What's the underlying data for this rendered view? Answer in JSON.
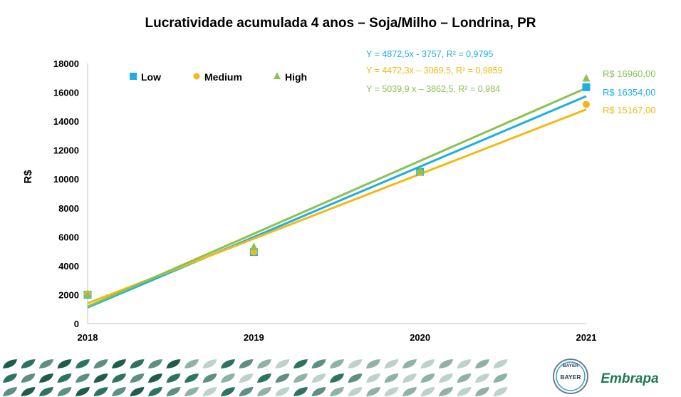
{
  "chart_data": {
    "type": "scatter",
    "title": "Lucratividade acumulada 4 anos – Soja/Milho – Londrina, PR",
    "xlabel": "",
    "ylabel": "R$",
    "x": [
      2018,
      2019,
      2020,
      2021
    ],
    "xlim": [
      2018,
      2021
    ],
    "ylim": [
      0,
      18000
    ],
    "yticks": [
      0,
      2000,
      4000,
      6000,
      8000,
      10000,
      12000,
      14000,
      16000,
      18000
    ],
    "grid": false,
    "legend_position": "top-left",
    "series": [
      {
        "name": "Low",
        "marker": "square",
        "color": "#1CAEE4",
        "values": [
          2000,
          4950,
          10500,
          16354
        ],
        "trend": {
          "slope": 4872.5,
          "intercept": -3757
        },
        "equation": "Y = 4872,5x - 3757, R² = 0,9795",
        "end_label": "R$ 16354,00"
      },
      {
        "name": "Medium",
        "marker": "circle",
        "color": "#F5B812",
        "values": [
          2050,
          4950,
          10450,
          15167
        ],
        "trend": {
          "slope": 4472.3,
          "intercept": -3069.5
        },
        "equation": "Y = 4472,3x – 3069,5, R² = 0,9859",
        "end_label": "R$ 15167,00"
      },
      {
        "name": "High",
        "marker": "triangle",
        "color": "#8CC152",
        "values": [
          2000,
          5300,
          10550,
          16960
        ],
        "trend": {
          "slope": 5039.9,
          "intercept": -3862.5
        },
        "equation": "Y = 5039,9 x – 3862,5, R² = 0,984",
        "end_label": "R$ 16960,00"
      }
    ]
  },
  "logos": {
    "bayer_top": "BAYER",
    "bayer_mid": "BAYER",
    "embrapa": "Embrapa"
  }
}
